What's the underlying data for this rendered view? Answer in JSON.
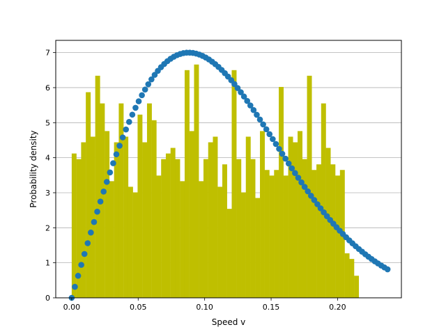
{
  "chart_data": {
    "type": "bar",
    "xlabel": "Speed v",
    "ylabel": "Probability density",
    "xlim": [
      -0.012,
      0.248
    ],
    "ylim": [
      0,
      7.35
    ],
    "xticks": [
      "0.00",
      "0.05",
      "0.10",
      "0.15",
      "0.20"
    ],
    "xtick_values": [
      0.0,
      0.05,
      0.1,
      0.15,
      0.2
    ],
    "yticks": [
      "0",
      "1",
      "2",
      "3",
      "4",
      "5",
      "6",
      "7"
    ],
    "ytick_values": [
      0,
      1,
      2,
      3,
      4,
      5,
      6,
      7
    ],
    "grid": "y-major",
    "bar_color": "#bfbf00",
    "marker_color": "#1f77b4",
    "series": [
      {
        "type": "histogram",
        "bin_start": 0.0,
        "bin_width": 0.00354,
        "values": [
          4.12,
          3.96,
          4.44,
          5.87,
          4.6,
          6.34,
          5.55,
          4.76,
          3.33,
          4.44,
          5.55,
          4.6,
          3.17,
          3.01,
          5.23,
          4.44,
          5.55,
          5.07,
          3.49,
          3.96,
          4.12,
          4.28,
          3.96,
          3.33,
          6.5,
          4.76,
          6.66,
          3.33,
          3.96,
          4.44,
          4.6,
          3.17,
          3.81,
          2.54,
          6.5,
          3.96,
          3.01,
          4.6,
          3.96,
          2.85,
          4.76,
          3.65,
          3.49,
          3.65,
          6.02,
          3.49,
          4.6,
          4.44,
          4.76,
          3.96,
          6.34,
          3.65,
          3.81,
          5.55,
          4.28,
          3.81,
          3.49,
          3.65,
          1.27,
          1.11,
          0.63
        ]
      },
      {
        "type": "scatter",
        "x_start": 0.0,
        "x_step": 0.0024,
        "count": 100,
        "peak_v": 0.088,
        "peak_density": 7.0
      }
    ]
  }
}
